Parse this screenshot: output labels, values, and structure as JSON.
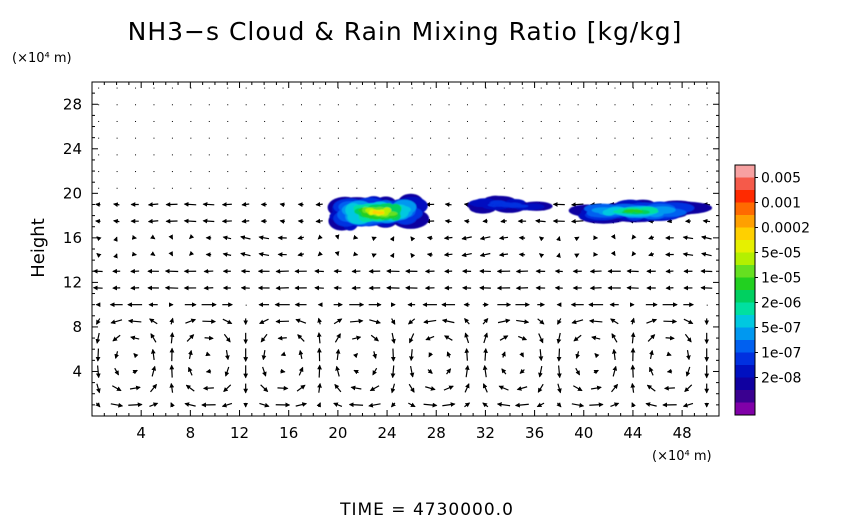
{
  "chart_data": {
    "type": "heatmap",
    "title": "NH3−s Cloud & Rain Mixing Ratio [kg/kg]",
    "ylabel": "Height",
    "y_unit_label": "(×10⁴ m)",
    "x_unit_label": "(×10⁴ m)",
    "xlim": [
      0,
      51
    ],
    "ylim": [
      0,
      30
    ],
    "x_ticks": [
      4,
      8,
      12,
      16,
      20,
      24,
      28,
      32,
      36,
      40,
      44,
      48
    ],
    "y_ticks": [
      4,
      8,
      12,
      16,
      20,
      24,
      28
    ],
    "colorbar": {
      "labels": [
        "0.005",
        "0.001",
        "0.0002",
        "5e-05",
        "1e-05",
        "2e-06",
        "5e-07",
        "1e-07",
        "2e-08"
      ],
      "colors": [
        "#f7a1a1",
        "#f55a4a",
        "#ff2a00",
        "#ff6a00",
        "#ffa000",
        "#ffd000",
        "#e6f000",
        "#b4f000",
        "#66e020",
        "#22d020",
        "#00d060",
        "#00e0a0",
        "#00c8e0",
        "#0098f0",
        "#0060f0",
        "#0030e0",
        "#0010c0",
        "#1000a0",
        "#3a0090",
        "#8000a8"
      ]
    },
    "cloud_regions": [
      {
        "x_range": [
          19.5,
          27.0
        ],
        "y_range": [
          17.0,
          19.6
        ],
        "peak": "0.0002"
      },
      {
        "x_range": [
          30.0,
          37.5
        ],
        "y_range": [
          18.3,
          19.7
        ],
        "peak": "1e-07"
      },
      {
        "x_range": [
          39.0,
          49.0
        ],
        "y_range": [
          17.5,
          19.3
        ],
        "peak": "1e-05"
      }
    ],
    "wind_field": "quiver arrows; eddies centred near height 2–6 (×10⁴ m), strong zonal flow along height 12 and 17–18"
  },
  "footer": {
    "time_text": "TIME  =  4730000.0"
  }
}
